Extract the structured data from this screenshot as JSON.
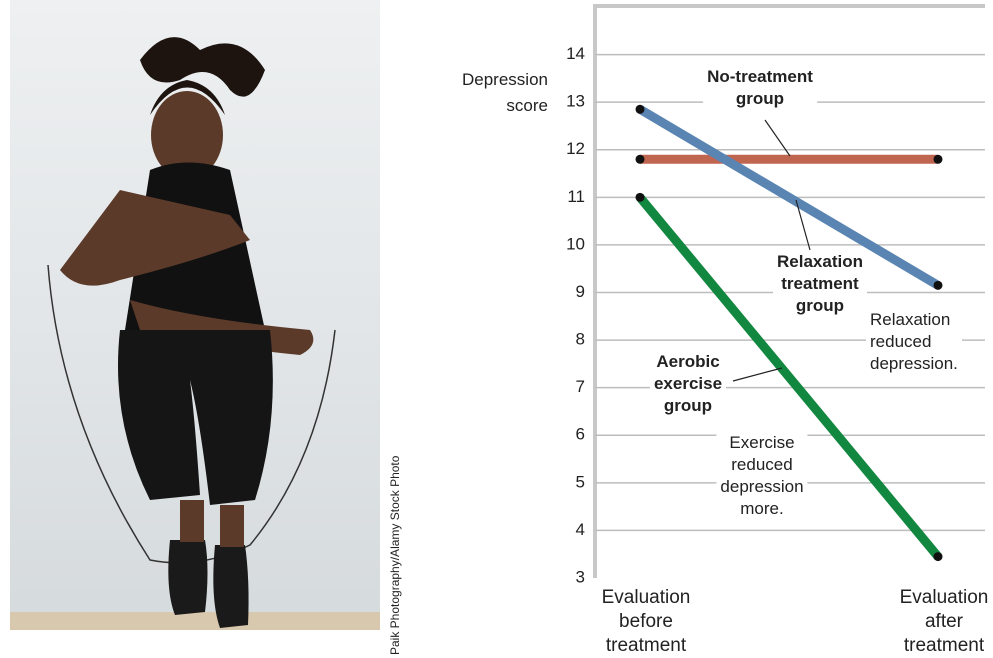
{
  "photo_credit": "Paik Photography/Alamy Stock Photo",
  "chart_data": {
    "type": "line",
    "y_label": "Depression\nscore",
    "categories": [
      "Evaluation\nbefore\ntreatment",
      "Evaluation\nafter\ntreatment"
    ],
    "series": [
      {
        "name": "No-treatment\ngroup",
        "color": "#c0654f",
        "values": [
          11.8,
          11.8
        ]
      },
      {
        "name": "Relaxation\ntreatment\ngroup",
        "color": "#5a85b3",
        "values": [
          12.85,
          9.15
        ]
      },
      {
        "name": "Aerobic\nexercise\ngroup",
        "color": "#12873f",
        "values": [
          11,
          3.45
        ]
      }
    ],
    "annotations": [
      "Relaxation\nreduced\ndepression.",
      "Exercise\nreduced\ndepression\nmore."
    ],
    "ylim": [
      3,
      15
    ],
    "yticks": [
      3,
      4,
      5,
      6,
      7,
      8,
      9,
      10,
      11,
      12,
      13,
      14
    ],
    "grid": true
  }
}
